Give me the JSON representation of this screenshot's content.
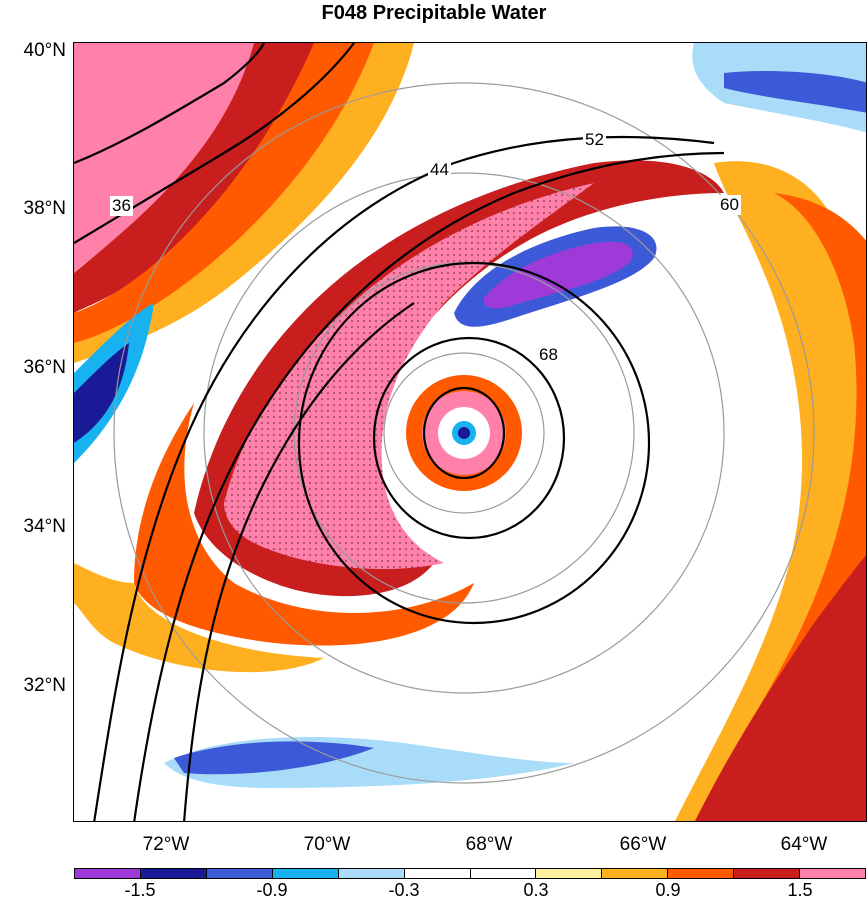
{
  "title": "F048 Precipitable Water",
  "axes": {
    "lat_labels": [
      "40°N",
      "38°N",
      "36°N",
      "34°N",
      "32°N"
    ],
    "lon_labels": [
      "72°W",
      "70°W",
      "68°W",
      "66°W",
      "64°W"
    ]
  },
  "contour_labels": [
    "36",
    "44",
    "52",
    "60",
    "68"
  ],
  "colorbar": {
    "colors": [
      "#9e3ad8",
      "#1a1a96",
      "#3c5ad8",
      "#19b2f0",
      "#a8dcf8",
      "#ffffff",
      "#ffffff",
      "#fff0a0",
      "#ffb020",
      "#ff5a00",
      "#c81e1e",
      "#ff80a8"
    ],
    "tick_labels": [
      "-1.5",
      "-0.9",
      "-0.3",
      "0.3",
      "0.9",
      "1.5"
    ]
  }
}
